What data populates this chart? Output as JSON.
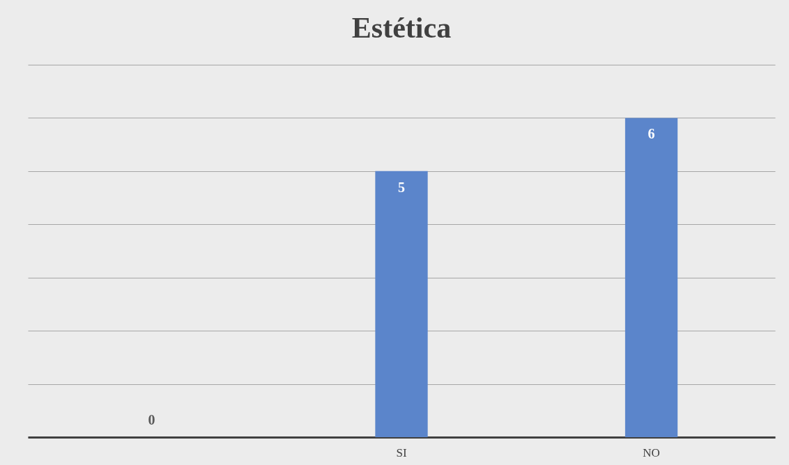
{
  "chart_data": {
    "type": "bar",
    "title": "Estética",
    "categories": [
      null,
      "SI",
      "NO"
    ],
    "values": [
      0,
      5,
      6
    ],
    "color": "#5b85cb",
    "ylim": [
      0,
      7
    ],
    "yticks": [
      {
        "value": 0,
        "label": null
      },
      {
        "value": 1,
        "label": null
      },
      {
        "value": 2,
        "label": null
      },
      {
        "value": 3,
        "label": null
      },
      {
        "value": 4,
        "label": null
      },
      {
        "value": 5,
        "label": null
      },
      {
        "value": 6,
        "label": null
      },
      {
        "value": 7,
        "label": null
      }
    ],
    "tick_labels": "x",
    "grid": "y",
    "data_labels": true
  }
}
